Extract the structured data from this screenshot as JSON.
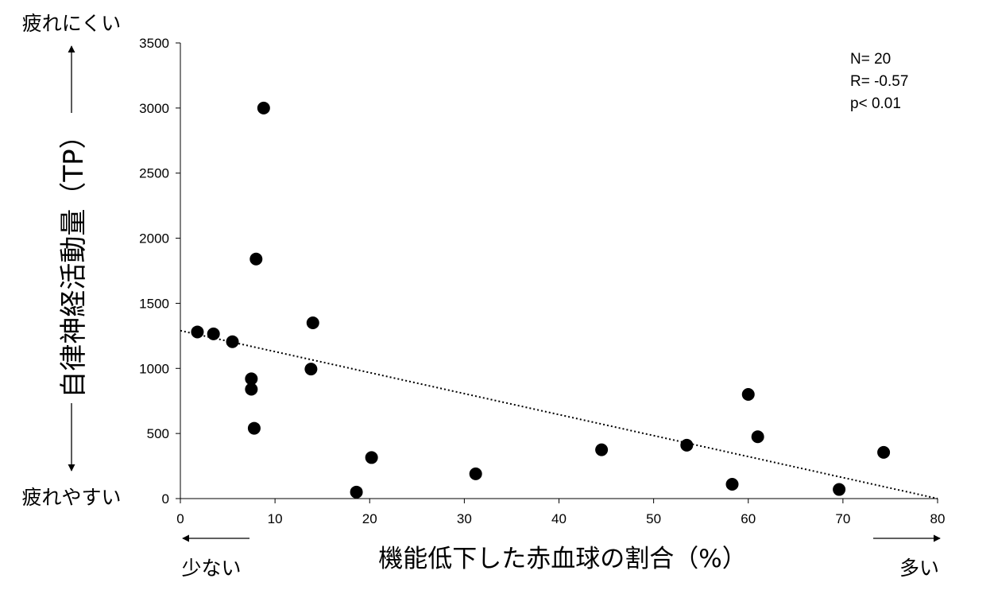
{
  "chart_data": {
    "type": "scatter",
    "title": "",
    "xlabel": "機能低下した赤血球の割合（%）",
    "ylabel": "自律神経活動量（TP）",
    "xlim": [
      0,
      80
    ],
    "ylim": [
      0,
      3500
    ],
    "x_ticks": [
      "0",
      "10",
      "20",
      "30",
      "40",
      "50",
      "60",
      "70",
      "80"
    ],
    "y_ticks": [
      "0",
      "500",
      "1000",
      "1500",
      "2000",
      "2500",
      "3000",
      "3500"
    ],
    "grid": false,
    "legend": "none",
    "trendline": {
      "style": "dotted",
      "from": [
        0,
        1290
      ],
      "to": [
        80,
        0
      ]
    },
    "points": [
      {
        "x": 1.8,
        "y": 1280
      },
      {
        "x": 3.5,
        "y": 1265
      },
      {
        "x": 5.5,
        "y": 1205
      },
      {
        "x": 7.5,
        "y": 920
      },
      {
        "x": 7.5,
        "y": 840
      },
      {
        "x": 7.8,
        "y": 540
      },
      {
        "x": 8.0,
        "y": 1840
      },
      {
        "x": 8.8,
        "y": 3000
      },
      {
        "x": 13.8,
        "y": 995
      },
      {
        "x": 14.0,
        "y": 1350
      },
      {
        "x": 18.6,
        "y": 50
      },
      {
        "x": 20.2,
        "y": 315
      },
      {
        "x": 31.2,
        "y": 190
      },
      {
        "x": 44.5,
        "y": 375
      },
      {
        "x": 53.5,
        "y": 410
      },
      {
        "x": 58.3,
        "y": 110
      },
      {
        "x": 60.0,
        "y": 800
      },
      {
        "x": 61.0,
        "y": 475
      },
      {
        "x": 69.6,
        "y": 70
      },
      {
        "x": 74.3,
        "y": 355
      }
    ],
    "annotations": {
      "top_left": "疲れにくい",
      "bottom_left": "疲れやすい",
      "x_low": "少ない",
      "x_high": "多い",
      "stats": [
        "N= 20",
        "R= -0.57",
        "p< 0.01"
      ]
    },
    "colors": {
      "points": "#000000",
      "axis": "#000000",
      "trendline": "#000000"
    }
  }
}
